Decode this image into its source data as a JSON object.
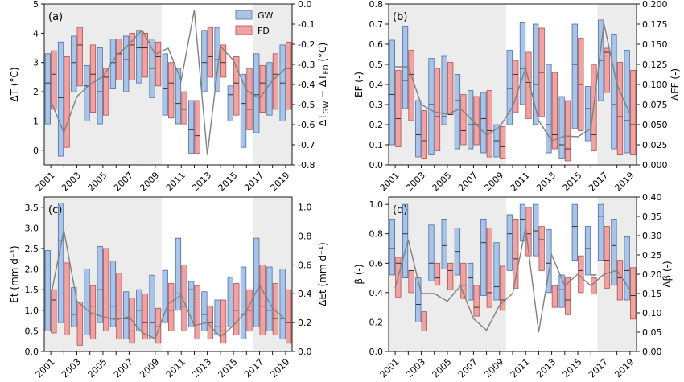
{
  "years": [
    2001,
    2002,
    2003,
    2004,
    2005,
    2006,
    2007,
    2008,
    2009,
    2010,
    2011,
    2012,
    2013,
    2014,
    2015,
    2016,
    2017,
    2018,
    2019
  ],
  "colors": {
    "gw_fill": "#a9c4e6",
    "gw_edge": "#4a6fa5",
    "fd_fill": "#f0a3a3",
    "fd_edge": "#b05050",
    "median": "#333333",
    "diff_line": "#808080",
    "shade": "#ececec"
  },
  "chart_data": [
    {
      "type": "bar",
      "panel_label": "(a)",
      "ylabel": "ΔT (°C)",
      "ylabel_right": "ΔT_GW − ΔT_FD (°C)",
      "ylim": [
        -0.5,
        5
      ],
      "yticks": [
        0,
        1,
        2,
        3,
        4,
        5
      ],
      "ylim_right": [
        -0.8,
        0
      ],
      "yticks_right": [
        -0.8,
        -0.7,
        -0.6,
        -0.5,
        -0.4,
        -0.3,
        -0.2,
        -0.1,
        0.0
      ],
      "right_tick_decimals": 1,
      "shaded_ranges": [
        [
          2000.5,
          2009.5
        ],
        [
          2016.5,
          2019.5
        ]
      ],
      "legend": {
        "position": "top-right",
        "entries": [
          {
            "name": "GW",
            "color": "#a9c4e6"
          },
          {
            "name": "FD",
            "color": "#f0a3a3"
          }
        ]
      },
      "series": [
        {
          "name": "GW",
          "low": [
            0.9,
            -0.2,
            2.0,
            1.0,
            0.9,
            2.1,
            2.0,
            2.3,
            1.8,
            1.2,
            0.9,
            -0.1,
            2.0,
            2.0,
            1.0,
            0.1,
            0.6,
            1.2,
            1.0
          ],
          "median": [
            2.3,
            1.8,
            3.0,
            2.2,
            2.0,
            3.0,
            3.1,
            3.5,
            2.8,
            2.1,
            1.6,
            0.7,
            3.0,
            3.1,
            1.9,
            1.6,
            1.9,
            2.4,
            2.3
          ],
          "high": [
            3.3,
            3.7,
            3.9,
            2.9,
            3.5,
            3.8,
            3.9,
            4.1,
            3.8,
            3.3,
            2.8,
            1.7,
            4.1,
            4.2,
            2.2,
            2.6,
            3.3,
            3.0,
            3.6
          ]
        },
        {
          "name": "FD",
          "low": [
            1.4,
            0.1,
            2.2,
            1.3,
            1.2,
            2.4,
            2.4,
            2.5,
            2.2,
            1.1,
            0.9,
            -0.1,
            2.5,
            2.5,
            1.2,
            0.7,
            1.3,
            1.4,
            1.4
          ],
          "median": [
            2.6,
            2.4,
            3.6,
            2.6,
            2.5,
            3.3,
            3.6,
            3.5,
            3.2,
            2.3,
            1.4,
            0.5,
            3.2,
            3.0,
            2.3,
            1.4,
            2.3,
            2.6,
            2.8
          ],
          "high": [
            3.4,
            3.2,
            4.2,
            3.6,
            2.8,
            3.8,
            4.0,
            4.0,
            3.7,
            3.0,
            2.0,
            1.7,
            4.2,
            3.6,
            3.2,
            2.8,
            2.9,
            3.3,
            3.7
          ]
        }
      ],
      "difference_line": [
        -0.48,
        -0.64,
        -0.46,
        -0.4,
        -0.36,
        -0.26,
        -0.2,
        -0.13,
        -0.25,
        -0.22,
        -0.38,
        -0.03,
        -0.75,
        -0.21,
        -0.28,
        -0.43,
        -0.47,
        -0.38,
        -0.32
      ]
    },
    {
      "type": "bar",
      "panel_label": "(b)",
      "ylabel": "EF (-)",
      "ylabel_right": "ΔEF (-)",
      "ylim": [
        0,
        0.8
      ],
      "yticks": [
        0,
        0.1,
        0.2,
        0.3,
        0.4,
        0.5,
        0.6,
        0.7,
        0.8
      ],
      "ylim_right": [
        0,
        0.2
      ],
      "yticks_right": [
        0,
        0.025,
        0.05,
        0.075,
        0.1,
        0.125,
        0.15,
        0.175,
        0.2
      ],
      "right_tick_decimals": 3,
      "shaded_ranges": [
        [
          2000.5,
          2009.5
        ],
        [
          2016.5,
          2019.5
        ]
      ],
      "series": [
        {
          "name": "GW",
          "low": [
            0.1,
            0.28,
            0.04,
            0.05,
            0.2,
            0.08,
            0.08,
            0.06,
            0.04,
            0.2,
            0.3,
            0.2,
            0.06,
            0.03,
            0.18,
            0.12,
            0.32,
            0.08,
            0.06
          ],
          "median": [
            0.35,
            0.42,
            0.15,
            0.3,
            0.24,
            0.32,
            0.2,
            0.23,
            0.12,
            0.38,
            0.48,
            0.4,
            0.2,
            0.1,
            0.5,
            0.28,
            0.52,
            0.3,
            0.22
          ],
          "high": [
            0.62,
            0.69,
            0.32,
            0.53,
            0.54,
            0.45,
            0.37,
            0.36,
            0.2,
            0.57,
            0.71,
            0.7,
            0.5,
            0.34,
            0.7,
            0.39,
            0.72,
            0.65,
            0.57
          ]
        },
        {
          "name": "FD",
          "low": [
            0.09,
            0.22,
            0.03,
            0.07,
            0.25,
            0.1,
            0.1,
            0.04,
            0.03,
            0.26,
            0.23,
            0.24,
            0.08,
            0.02,
            0.17,
            0.07,
            0.36,
            0.05,
            0.05
          ],
          "median": [
            0.23,
            0.45,
            0.12,
            0.24,
            0.25,
            0.17,
            0.2,
            0.17,
            0.09,
            0.45,
            0.41,
            0.46,
            0.15,
            0.08,
            0.4,
            0.15,
            0.56,
            0.24,
            0.2
          ],
          "high": [
            0.47,
            0.57,
            0.27,
            0.48,
            0.51,
            0.35,
            0.34,
            0.37,
            0.19,
            0.52,
            0.56,
            0.68,
            0.46,
            0.32,
            0.63,
            0.5,
            0.58,
            0.51,
            0.47
          ]
        }
      ],
      "difference_line": [
        0.122,
        0.122,
        0.075,
        0.066,
        0.063,
        0.07,
        0.054,
        0.037,
        0.047,
        0.072,
        0.12,
        0.055,
        0.03,
        0.036,
        0.035,
        0.045,
        0.176,
        0.1,
        0.063
      ]
    },
    {
      "type": "bar",
      "panel_label": "(c)",
      "ylabel": "Et (mm d⁻¹)",
      "ylabel_right": "ΔEt (mm d⁻¹)",
      "ylim": [
        0,
        3.75
      ],
      "yticks": [
        0,
        0.5,
        1.0,
        1.5,
        2.0,
        2.5,
        3.0,
        3.5
      ],
      "ylim_right": [
        0,
        1.07
      ],
      "yticks_right": [
        0,
        0.2,
        0.4,
        0.6,
        0.8,
        1.0
      ],
      "right_tick_decimals": 1,
      "shaded_ranges": [
        [
          2000.5,
          2009.5
        ],
        [
          2016.5,
          2019.5
        ]
      ],
      "series": [
        {
          "name": "GW",
          "low": [
            0.5,
            0.7,
            0.6,
            0.4,
            0.7,
            0.6,
            0.3,
            0.5,
            0.3,
            0.7,
            1.0,
            0.6,
            0.5,
            0.4,
            0.6,
            0.3,
            0.6,
            0.5,
            0.3
          ],
          "median": [
            1.2,
            2.7,
            0.9,
            1.2,
            1.5,
            1.1,
            0.8,
            1.0,
            0.7,
            1.3,
            1.4,
            1.5,
            0.9,
            0.6,
            1.3,
            0.9,
            1.3,
            1.0,
            0.8
          ],
          "high": [
            2.45,
            3.6,
            1.55,
            2.0,
            2.55,
            2.2,
            1.45,
            1.5,
            1.85,
            1.97,
            2.75,
            1.7,
            1.45,
            1.25,
            1.8,
            2.05,
            2.75,
            2.05,
            2.0
          ]
        },
        {
          "name": "FD",
          "low": [
            0.45,
            0.4,
            0.15,
            0.3,
            0.5,
            0.3,
            0.2,
            0.3,
            0.2,
            0.5,
            0.5,
            0.3,
            0.3,
            0.2,
            0.4,
            0.5,
            0.4,
            0.4,
            0.2
          ],
          "median": [
            1.25,
            1.2,
            0.4,
            1.1,
            1.3,
            0.8,
            0.5,
            0.7,
            0.6,
            1.0,
            1.1,
            1.2,
            0.7,
            0.5,
            1.0,
            1.0,
            1.1,
            0.8,
            0.7
          ],
          "high": [
            1.5,
            2.15,
            1.2,
            1.6,
            2.5,
            1.9,
            1.3,
            1.4,
            1.05,
            1.65,
            2.1,
            1.6,
            1.1,
            1.25,
            1.65,
            1.5,
            2.1,
            1.65,
            1.5
          ]
        }
      ],
      "difference_line": [
        0.38,
        0.84,
        0.35,
        0.27,
        0.24,
        0.22,
        0.24,
        0.13,
        0.09,
        0.33,
        0.39,
        0.18,
        0.2,
        0.1,
        0.18,
        0.28,
        0.46,
        0.3,
        0.22
      ]
    },
    {
      "type": "bar",
      "panel_label": "(d)",
      "ylabel": "β (-)",
      "ylabel_right": "Δβ (-)",
      "ylim": [
        0,
        1.05
      ],
      "yticks": [
        0,
        0.2,
        0.4,
        0.6,
        0.8,
        1.0
      ],
      "ylim_right": [
        0,
        0.4
      ],
      "yticks_right": [
        0,
        0.05,
        0.1,
        0.15,
        0.2,
        0.25,
        0.3,
        0.35,
        0.4
      ],
      "right_tick_decimals": 2,
      "shaded_ranges": [
        [
          2000.5,
          2009.5
        ],
        [
          2016.5,
          2019.5
        ]
      ],
      "series": [
        {
          "name": "GW",
          "low": [
            0.52,
            0.5,
            0.2,
            0.48,
            0.56,
            0.52,
            0.35,
            0.38,
            0.35,
            0.55,
            0.75,
            0.65,
            0.4,
            0.3,
            0.62,
            0.52,
            0.62,
            0.45,
            0.35
          ],
          "median": [
            0.7,
            0.8,
            0.32,
            0.6,
            0.72,
            0.68,
            0.5,
            0.74,
            0.44,
            0.8,
            0.9,
            0.82,
            0.6,
            0.42,
            0.85,
            0.7,
            0.92,
            0.72,
            0.55
          ],
          "high": [
            0.9,
            1.0,
            0.5,
            0.86,
            0.9,
            0.84,
            0.6,
            0.9,
            0.74,
            0.93,
            1.0,
            1.0,
            0.83,
            0.52,
            1.0,
            0.85,
            1.0,
            0.9,
            0.78
          ]
        },
        {
          "name": "FD",
          "low": [
            0.37,
            0.4,
            0.14,
            0.45,
            0.42,
            0.36,
            0.24,
            0.3,
            0.28,
            0.43,
            0.65,
            0.55,
            0.3,
            0.25,
            0.4,
            0.39,
            0.43,
            0.35,
            0.22
          ],
          "median": [
            0.6,
            0.55,
            0.2,
            0.5,
            0.55,
            0.45,
            0.3,
            0.4,
            0.35,
            0.63,
            0.8,
            0.76,
            0.45,
            0.35,
            0.55,
            0.52,
            0.62,
            0.5,
            0.38
          ],
          "high": [
            0.64,
            0.55,
            0.27,
            0.6,
            0.6,
            0.6,
            0.45,
            0.84,
            0.58,
            0.9,
            0.98,
            0.85,
            0.45,
            0.5,
            0.65,
            0.5,
            0.85,
            0.62,
            0.57
          ]
        }
      ],
      "difference_line": [
        0.165,
        0.29,
        0.15,
        0.15,
        0.13,
        0.17,
        0.085,
        0.055,
        0.12,
        0.15,
        0.32,
        0.05,
        0.25,
        0.17,
        0.2,
        0.17,
        0.2,
        0.21,
        0.16
      ]
    }
  ]
}
